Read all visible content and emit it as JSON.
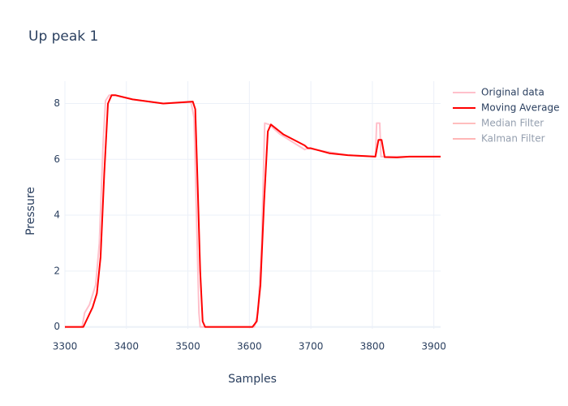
{
  "chart_data": {
    "type": "line",
    "title": "Up peak 1",
    "x_label": "Samples",
    "y_label": "Pressure",
    "xlim": [
      3300,
      3911
    ],
    "ylim": [
      -0.07,
      8.8
    ],
    "xticks": [
      3300,
      3400,
      3500,
      3600,
      3700,
      3800,
      3900
    ],
    "yticks": [
      0,
      2,
      4,
      6,
      8
    ],
    "grid": true,
    "series": [
      {
        "name": "Original data",
        "color": "#ffc0cb",
        "visible": true,
        "x": [
          3300,
          3328,
          3332,
          3340,
          3350,
          3356,
          3362,
          3366,
          3372,
          3380,
          3410,
          3460,
          3505,
          3510,
          3514,
          3518,
          3520,
          3600,
          3608,
          3614,
          3620,
          3625,
          3632,
          3650,
          3690,
          3695,
          3720,
          3760,
          3805,
          3807,
          3812,
          3814,
          3850,
          3860,
          3911
        ],
        "values": [
          0,
          0,
          0.5,
          0.8,
          1.5,
          3,
          6.5,
          8.1,
          8.3,
          8.3,
          8.15,
          8.0,
          8.05,
          7.5,
          4,
          0.5,
          0,
          0,
          0,
          0.5,
          3,
          7.3,
          7.25,
          6.9,
          6.35,
          6.4,
          6.3,
          6.15,
          6.1,
          7.3,
          7.3,
          6.1,
          6.1,
          6.1,
          6.1
        ]
      },
      {
        "name": "Moving Average",
        "color": "#ff0000",
        "visible": true,
        "x": [
          3300,
          3330,
          3345,
          3352,
          3358,
          3364,
          3370,
          3376,
          3382,
          3410,
          3460,
          3508,
          3512,
          3516,
          3520,
          3524,
          3528,
          3605,
          3612,
          3618,
          3624,
          3630,
          3635,
          3655,
          3690,
          3695,
          3700,
          3730,
          3760,
          3805,
          3810,
          3815,
          3820,
          3840,
          3860,
          3911
        ],
        "values": [
          0,
          0,
          0.7,
          1.2,
          2.5,
          5.5,
          8.0,
          8.3,
          8.3,
          8.15,
          8.0,
          8.07,
          7.8,
          5,
          2,
          0.2,
          0,
          0,
          0.2,
          1.5,
          4.5,
          7.0,
          7.25,
          6.9,
          6.5,
          6.4,
          6.4,
          6.22,
          6.15,
          6.1,
          6.7,
          6.7,
          6.08,
          6.07,
          6.1,
          6.1
        ]
      },
      {
        "name": "Median Filter",
        "color": "#ff7f7f",
        "visible": false
      },
      {
        "name": "Kalman Filter",
        "color": "#ff6f6f",
        "visible": false
      }
    ]
  }
}
